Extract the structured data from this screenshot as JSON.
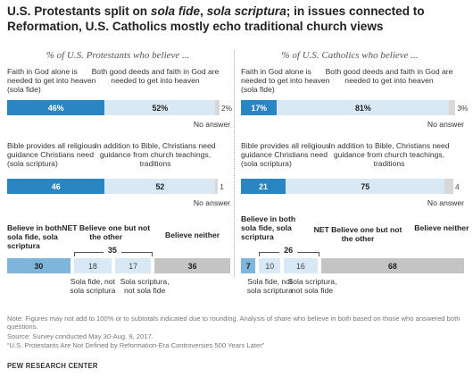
{
  "title": {
    "part1": "U.S. Protestants split on ",
    "italic1": "sola fide",
    "part2": ", ",
    "italic2": "sola scriptura",
    "part3": "; in issues connected to Reformation, U.S. Catholics mostly echo traditional church views"
  },
  "colors": {
    "dark": "#2a86c3",
    "light": "#d9e8f5",
    "gray": "#d8d8d8",
    "mid": "#7eb5dc",
    "neither": "#c4c4c4"
  },
  "chart_data": [
    {
      "type": "bar",
      "subtitle": "% of U.S. Protestants who believe ...",
      "rows": [
        {
          "left_label": "Faith in God alone is needed to get into heaven (sola fide)",
          "right_label": "Both good deeds and faith in God are needed to get into heaven",
          "values": [
            46,
            52,
            2
          ],
          "value_labels": [
            "46%",
            "52%",
            "2%"
          ],
          "no_answer_label": "No answer"
        },
        {
          "left_label": "Bible provides all religious guidance Christians need (sola scriptura)",
          "right_label": "In addition to Bible, Christians need guidance from church teachings, traditions",
          "values": [
            46,
            52,
            1
          ],
          "value_labels": [
            "46",
            "52",
            "1"
          ],
          "no_answer_label": "No answer"
        }
      ],
      "summary": {
        "categories": [
          "Believe in both sola fide, sola scriptura",
          "Sola fide, not sola scriptura",
          "Sola scriptura, not sola fide",
          "Believe neither"
        ],
        "values": [
          30,
          18,
          17,
          36
        ],
        "both_label": "Believe in both sola fide, sola scriptura",
        "net_label": "NET Believe one but not the other",
        "net_value": "35",
        "neither_label": "Believe neither",
        "sub1_label": "Sola fide, not sola scriptura",
        "sub2_label": "Sola scriptura, not sola fide"
      }
    },
    {
      "type": "bar",
      "subtitle": "% of U.S. Catholics who believe ...",
      "rows": [
        {
          "left_label": "Faith in God alone is needed to get into heaven (sola fide)",
          "right_label": "Both good deeds and faith in God are needed to get into heaven",
          "values": [
            17,
            81,
            3
          ],
          "value_labels": [
            "17%",
            "81%",
            "3%"
          ],
          "no_answer_label": "No answer"
        },
        {
          "left_label": "Bible provides all religious guidance Christians need (sola scriptura)",
          "right_label": "In addition to Bible, Christians need guidance from church teachings, traditions",
          "values": [
            21,
            75,
            4
          ],
          "value_labels": [
            "21",
            "75",
            "4"
          ],
          "no_answer_label": "No answer"
        }
      ],
      "summary": {
        "categories": [
          "Believe in both sola fide, sola scriptura",
          "Sola fide, not sola scriptura",
          "Sola scriptura, not sola fide",
          "Believe neither"
        ],
        "values": [
          7,
          10,
          16,
          68
        ],
        "both_label": "Believe in both sola fide, sola scriptura",
        "net_label": "NET Believe one but not the other",
        "net_value": "26",
        "neither_label": "Believe neither",
        "sub1_label": "Sola fide, not sola scriptura",
        "sub2_label": "Sola scriptura, not sola fide"
      }
    }
  ],
  "notes": {
    "note": "Note: Figures may not add to 100% or to subtotals indicated due to rounding. Analysis of share who believe in both based on those who answered both questions.",
    "source": "Source: Survey conducted May 30-Aug. 9, 2017.",
    "report": "“U.S. Protestants Are Not Defined by Reformation-Era Controversies 500 Years Later”",
    "footer": "PEW RESEARCH CENTER"
  }
}
